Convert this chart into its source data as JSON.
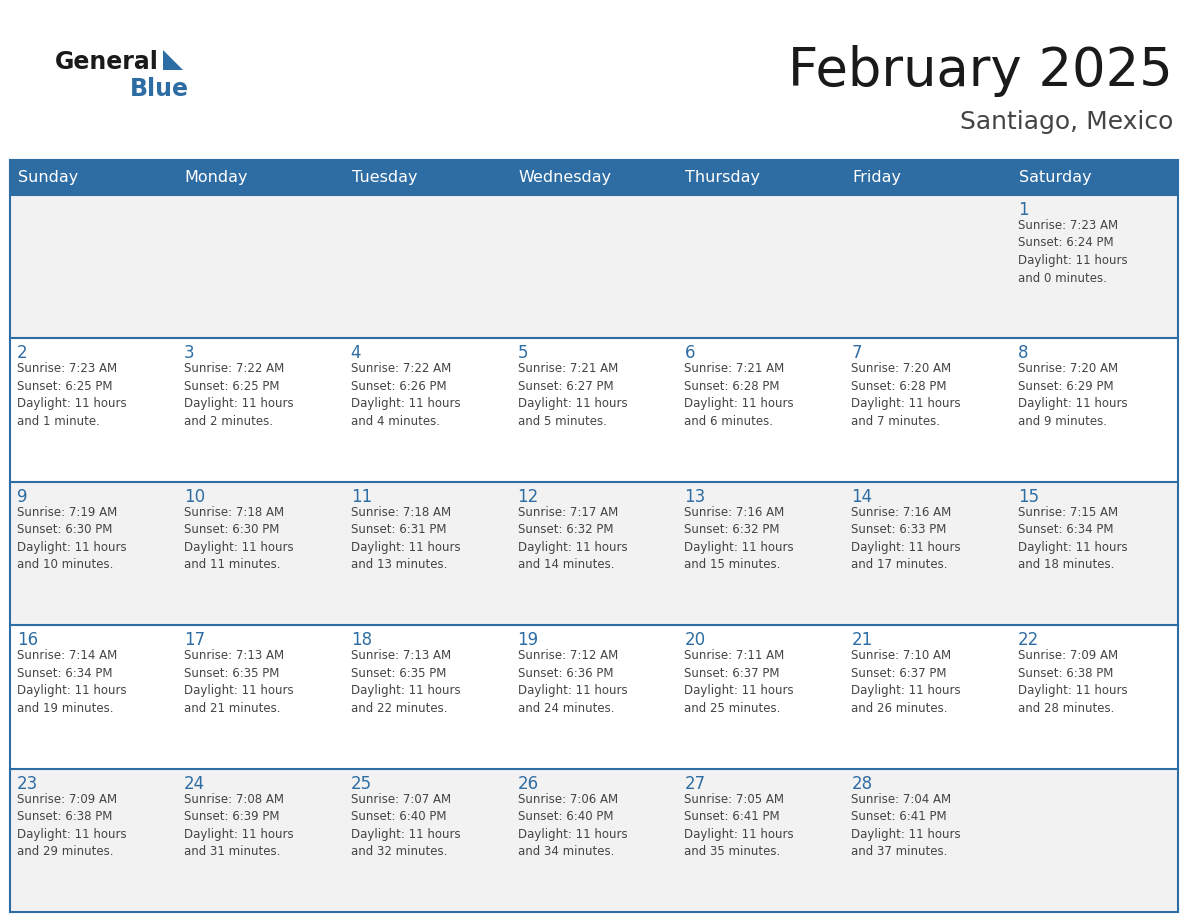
{
  "title": "February 2025",
  "subtitle": "Santiago, Mexico",
  "days_of_week": [
    "Sunday",
    "Monday",
    "Tuesday",
    "Wednesday",
    "Thursday",
    "Friday",
    "Saturday"
  ],
  "header_bg": "#2E6DA4",
  "header_text": "#FFFFFF",
  "cell_bg_odd": "#F2F2F2",
  "cell_bg_even": "#FFFFFF",
  "cell_border": "#2E6DA4",
  "day_num_color": "#2E6DA4",
  "info_text_color": "#444444",
  "title_color": "#1a1a1a",
  "subtitle_color": "#444444",
  "logo_general_color": "#1a1a1a",
  "logo_blue_color": "#2E6DA4",
  "logo_triangle_color": "#2E6DA4",
  "weeks": [
    [
      {
        "day": null,
        "info": null
      },
      {
        "day": null,
        "info": null
      },
      {
        "day": null,
        "info": null
      },
      {
        "day": null,
        "info": null
      },
      {
        "day": null,
        "info": null
      },
      {
        "day": null,
        "info": null
      },
      {
        "day": 1,
        "info": "Sunrise: 7:23 AM\nSunset: 6:24 PM\nDaylight: 11 hours\nand 0 minutes."
      }
    ],
    [
      {
        "day": 2,
        "info": "Sunrise: 7:23 AM\nSunset: 6:25 PM\nDaylight: 11 hours\nand 1 minute."
      },
      {
        "day": 3,
        "info": "Sunrise: 7:22 AM\nSunset: 6:25 PM\nDaylight: 11 hours\nand 2 minutes."
      },
      {
        "day": 4,
        "info": "Sunrise: 7:22 AM\nSunset: 6:26 PM\nDaylight: 11 hours\nand 4 minutes."
      },
      {
        "day": 5,
        "info": "Sunrise: 7:21 AM\nSunset: 6:27 PM\nDaylight: 11 hours\nand 5 minutes."
      },
      {
        "day": 6,
        "info": "Sunrise: 7:21 AM\nSunset: 6:28 PM\nDaylight: 11 hours\nand 6 minutes."
      },
      {
        "day": 7,
        "info": "Sunrise: 7:20 AM\nSunset: 6:28 PM\nDaylight: 11 hours\nand 7 minutes."
      },
      {
        "day": 8,
        "info": "Sunrise: 7:20 AM\nSunset: 6:29 PM\nDaylight: 11 hours\nand 9 minutes."
      }
    ],
    [
      {
        "day": 9,
        "info": "Sunrise: 7:19 AM\nSunset: 6:30 PM\nDaylight: 11 hours\nand 10 minutes."
      },
      {
        "day": 10,
        "info": "Sunrise: 7:18 AM\nSunset: 6:30 PM\nDaylight: 11 hours\nand 11 minutes."
      },
      {
        "day": 11,
        "info": "Sunrise: 7:18 AM\nSunset: 6:31 PM\nDaylight: 11 hours\nand 13 minutes."
      },
      {
        "day": 12,
        "info": "Sunrise: 7:17 AM\nSunset: 6:32 PM\nDaylight: 11 hours\nand 14 minutes."
      },
      {
        "day": 13,
        "info": "Sunrise: 7:16 AM\nSunset: 6:32 PM\nDaylight: 11 hours\nand 15 minutes."
      },
      {
        "day": 14,
        "info": "Sunrise: 7:16 AM\nSunset: 6:33 PM\nDaylight: 11 hours\nand 17 minutes."
      },
      {
        "day": 15,
        "info": "Sunrise: 7:15 AM\nSunset: 6:34 PM\nDaylight: 11 hours\nand 18 minutes."
      }
    ],
    [
      {
        "day": 16,
        "info": "Sunrise: 7:14 AM\nSunset: 6:34 PM\nDaylight: 11 hours\nand 19 minutes."
      },
      {
        "day": 17,
        "info": "Sunrise: 7:13 AM\nSunset: 6:35 PM\nDaylight: 11 hours\nand 21 minutes."
      },
      {
        "day": 18,
        "info": "Sunrise: 7:13 AM\nSunset: 6:35 PM\nDaylight: 11 hours\nand 22 minutes."
      },
      {
        "day": 19,
        "info": "Sunrise: 7:12 AM\nSunset: 6:36 PM\nDaylight: 11 hours\nand 24 minutes."
      },
      {
        "day": 20,
        "info": "Sunrise: 7:11 AM\nSunset: 6:37 PM\nDaylight: 11 hours\nand 25 minutes."
      },
      {
        "day": 21,
        "info": "Sunrise: 7:10 AM\nSunset: 6:37 PM\nDaylight: 11 hours\nand 26 minutes."
      },
      {
        "day": 22,
        "info": "Sunrise: 7:09 AM\nSunset: 6:38 PM\nDaylight: 11 hours\nand 28 minutes."
      }
    ],
    [
      {
        "day": 23,
        "info": "Sunrise: 7:09 AM\nSunset: 6:38 PM\nDaylight: 11 hours\nand 29 minutes."
      },
      {
        "day": 24,
        "info": "Sunrise: 7:08 AM\nSunset: 6:39 PM\nDaylight: 11 hours\nand 31 minutes."
      },
      {
        "day": 25,
        "info": "Sunrise: 7:07 AM\nSunset: 6:40 PM\nDaylight: 11 hours\nand 32 minutes."
      },
      {
        "day": 26,
        "info": "Sunrise: 7:06 AM\nSunset: 6:40 PM\nDaylight: 11 hours\nand 34 minutes."
      },
      {
        "day": 27,
        "info": "Sunrise: 7:05 AM\nSunset: 6:41 PM\nDaylight: 11 hours\nand 35 minutes."
      },
      {
        "day": 28,
        "info": "Sunrise: 7:04 AM\nSunset: 6:41 PM\nDaylight: 11 hours\nand 37 minutes."
      },
      {
        "day": null,
        "info": null
      }
    ]
  ]
}
